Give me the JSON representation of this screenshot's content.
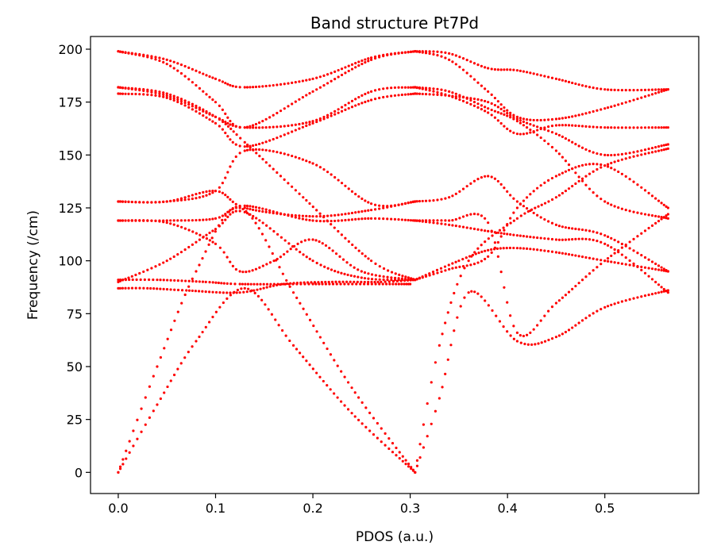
{
  "chart_data": {
    "type": "scatter",
    "title": "Band structure Pt7Pd",
    "xlabel": "PDOS (a.u.)",
    "ylabel": "Frequency (/cm)",
    "xlim": [
      -0.0285,
      0.5965
    ],
    "ylim": [
      -10,
      206
    ],
    "xticks": [
      0.0,
      0.1,
      0.2,
      0.3,
      0.4,
      0.5
    ],
    "xtick_labels": [
      "0.0",
      "0.1",
      "0.2",
      "0.3",
      "0.4",
      "0.5"
    ],
    "yticks": [
      0,
      25,
      50,
      75,
      100,
      125,
      150,
      175,
      200
    ],
    "ytick_labels": [
      "0",
      "25",
      "50",
      "75",
      "100",
      "125",
      "150",
      "175",
      "200"
    ],
    "grid": false,
    "marker_color": "#ff0000",
    "series": [
      {
        "x": [
          0.0,
          0.04,
          0.08,
          0.13,
          0.18,
          0.24,
          0.305
        ],
        "values": [
          0,
          32,
          62,
          87,
          60,
          28,
          0
        ]
      },
      {
        "x": [
          0.0,
          0.04,
          0.08,
          0.125,
          0.18,
          0.24,
          0.305
        ],
        "values": [
          0,
          50,
          95,
          125,
          85,
          40,
          0
        ]
      },
      {
        "x": [
          0.0,
          0.03,
          0.07,
          0.125,
          0.17,
          0.22,
          0.27,
          0.305
        ],
        "values": [
          87,
          87,
          86,
          85,
          89,
          90,
          90,
          91
        ]
      },
      {
        "x": [
          0.0,
          0.04,
          0.09,
          0.125,
          0.2,
          0.3
        ],
        "values": [
          91,
          91,
          90,
          89,
          89,
          89
        ]
      },
      {
        "x": [
          0.0,
          0.05,
          0.1,
          0.13,
          0.2,
          0.25,
          0.305
        ],
        "values": [
          90,
          100,
          115,
          123,
          100,
          92,
          91
        ]
      },
      {
        "x": [
          0.0,
          0.05,
          0.1,
          0.13,
          0.2,
          0.26,
          0.305
        ],
        "values": [
          119,
          119,
          120,
          126,
          119,
          120,
          119
        ]
      },
      {
        "x": [
          0.0,
          0.05,
          0.1,
          0.125,
          0.16,
          0.2,
          0.25,
          0.305
        ],
        "values": [
          119,
          118,
          108,
          95,
          100,
          110,
          95,
          91
        ]
      },
      {
        "x": [
          0.0,
          0.05,
          0.1,
          0.13,
          0.2,
          0.26,
          0.305
        ],
        "values": [
          128,
          128,
          133,
          125,
          121,
          124,
          128
        ]
      },
      {
        "x": [
          0.0,
          0.05,
          0.1,
          0.13,
          0.2,
          0.26,
          0.305
        ],
        "values": [
          128,
          128,
          133,
          152,
          146,
          127,
          128
        ]
      },
      {
        "x": [
          0.0,
          0.05,
          0.1,
          0.13,
          0.2,
          0.26,
          0.305
        ],
        "values": [
          179,
          177,
          165,
          154,
          165,
          176,
          179
        ]
      },
      {
        "x": [
          0.0,
          0.05,
          0.1,
          0.13,
          0.19,
          0.26,
          0.305
        ],
        "values": [
          182,
          179,
          168,
          156,
          130,
          100,
          91
        ]
      },
      {
        "x": [
          0.0,
          0.05,
          0.1,
          0.13,
          0.2,
          0.26,
          0.305
        ],
        "values": [
          199,
          195,
          186,
          182,
          186,
          196,
          199
        ]
      },
      {
        "x": [
          0.0,
          0.05,
          0.1,
          0.13,
          0.2,
          0.26,
          0.305
        ],
        "values": [
          199,
          193,
          175,
          163,
          180,
          195,
          199
        ]
      },
      {
        "x": [
          0.0,
          0.05,
          0.1,
          0.13,
          0.2,
          0.26,
          0.305
        ],
        "values": [
          182,
          178,
          168,
          163,
          166,
          180,
          182
        ]
      },
      {
        "x": [
          0.305,
          0.33,
          0.36,
          0.41,
          0.45,
          0.5,
          0.565
        ],
        "values": [
          0,
          35,
          85,
          62,
          64,
          78,
          86
        ]
      },
      {
        "x": [
          0.305,
          0.33,
          0.36,
          0.41,
          0.45,
          0.5,
          0.565
        ],
        "values": [
          0,
          60,
          100,
          120,
          130,
          145,
          153
        ]
      },
      {
        "x": [
          0.305,
          0.35,
          0.38,
          0.41,
          0.45,
          0.5,
          0.565
        ],
        "values": [
          91,
          100,
          105,
          106,
          104,
          100,
          95
        ]
      },
      {
        "x": [
          0.305,
          0.34,
          0.38,
          0.41,
          0.45,
          0.5,
          0.565
        ],
        "values": [
          91,
          96,
          102,
          125,
          140,
          145,
          125
        ]
      },
      {
        "x": [
          0.305,
          0.34,
          0.38,
          0.41,
          0.45,
          0.5,
          0.565
        ],
        "values": [
          119,
          117,
          114,
          112,
          110,
          108,
          85
        ]
      },
      {
        "x": [
          0.305,
          0.34,
          0.38,
          0.41,
          0.45,
          0.5,
          0.565
        ],
        "values": [
          128,
          130,
          140,
          128,
          117,
          112,
          95
        ]
      },
      {
        "x": [
          0.305,
          0.34,
          0.38,
          0.41,
          0.45,
          0.5,
          0.565
        ],
        "values": [
          119,
          119,
          118,
          66,
          80,
          100,
          122
        ]
      },
      {
        "x": [
          0.305,
          0.34,
          0.38,
          0.41,
          0.45,
          0.5,
          0.565
        ],
        "values": [
          179,
          178,
          175,
          167,
          160,
          150,
          155
        ]
      },
      {
        "x": [
          0.305,
          0.34,
          0.38,
          0.41,
          0.45,
          0.5,
          0.565
        ],
        "values": [
          182,
          180,
          172,
          166,
          152,
          128,
          120
        ]
      },
      {
        "x": [
          0.305,
          0.34,
          0.38,
          0.41,
          0.45,
          0.5,
          0.565
        ],
        "values": [
          199,
          198,
          191,
          190,
          186,
          181,
          181
        ]
      },
      {
        "x": [
          0.305,
          0.34,
          0.38,
          0.41,
          0.45,
          0.5,
          0.565
        ],
        "values": [
          199,
          195,
          180,
          168,
          167,
          172,
          181
        ]
      },
      {
        "x": [
          0.305,
          0.34,
          0.38,
          0.41,
          0.45,
          0.5,
          0.565
        ],
        "values": [
          182,
          178,
          170,
          160,
          164,
          163,
          163
        ]
      }
    ]
  }
}
